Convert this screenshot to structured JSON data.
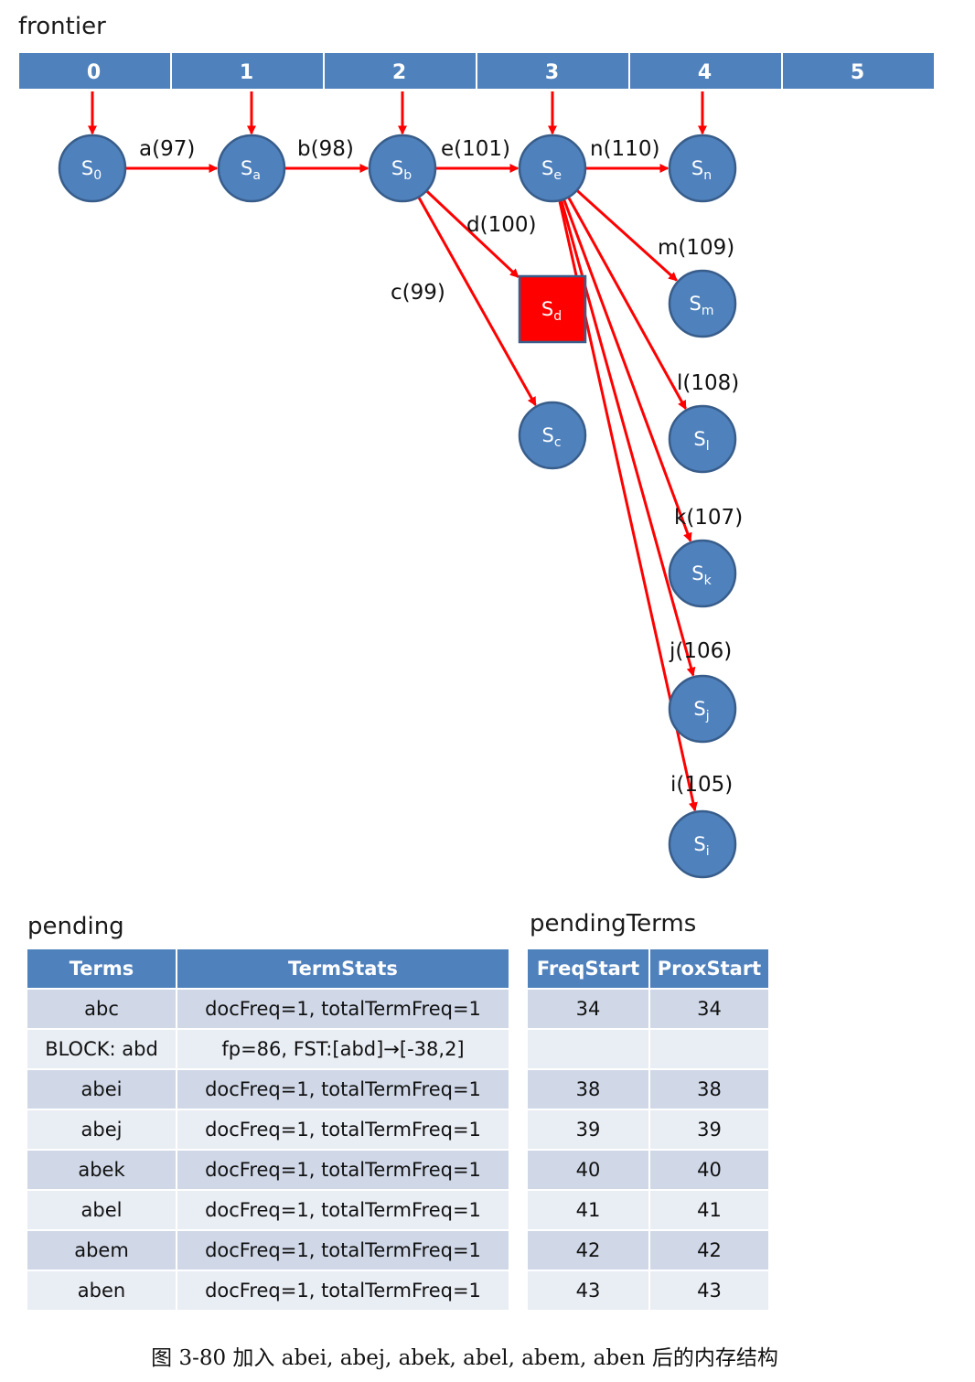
{
  "frontier": {
    "title": "frontier",
    "cells": [
      "0",
      "1",
      "2",
      "3",
      "4",
      "5"
    ]
  },
  "nodes": [
    {
      "id": "s0",
      "base": "S",
      "sub": "0",
      "shape": "circle"
    },
    {
      "id": "sa",
      "base": "S",
      "sub": "a",
      "shape": "circle"
    },
    {
      "id": "sb",
      "base": "S",
      "sub": "b",
      "shape": "circle"
    },
    {
      "id": "se",
      "base": "S",
      "sub": "e",
      "shape": "circle"
    },
    {
      "id": "sn",
      "base": "S",
      "sub": "n",
      "shape": "circle"
    },
    {
      "id": "sd",
      "base": "S",
      "sub": "d",
      "shape": "square"
    },
    {
      "id": "sc",
      "base": "S",
      "sub": "c",
      "shape": "circle"
    },
    {
      "id": "sm",
      "base": "S",
      "sub": "m",
      "shape": "circle"
    },
    {
      "id": "sl",
      "base": "S",
      "sub": "l",
      "shape": "circle"
    },
    {
      "id": "sk",
      "base": "S",
      "sub": "k",
      "shape": "circle"
    },
    {
      "id": "sj",
      "base": "S",
      "sub": "j",
      "shape": "circle"
    },
    {
      "id": "si",
      "base": "S",
      "sub": "i",
      "shape": "circle"
    }
  ],
  "edges": [
    {
      "from": "s0",
      "to": "sa",
      "label": "a(97)"
    },
    {
      "from": "sa",
      "to": "sb",
      "label": "b(98)"
    },
    {
      "from": "sb",
      "to": "se",
      "label": "e(101)"
    },
    {
      "from": "se",
      "to": "sn",
      "label": "n(110)"
    },
    {
      "from": "sb",
      "to": "sd",
      "label": "d(100)"
    },
    {
      "from": "sb",
      "to": "sc",
      "label": "c(99)"
    },
    {
      "from": "se",
      "to": "sm",
      "label": "m(109)"
    },
    {
      "from": "se",
      "to": "sl",
      "label": "l(108)"
    },
    {
      "from": "se",
      "to": "sk",
      "label": "k(107)"
    },
    {
      "from": "se",
      "to": "sj",
      "label": "j(106)"
    },
    {
      "from": "se",
      "to": "si",
      "label": "i(105)"
    }
  ],
  "frontier_links": [
    {
      "cell": "0",
      "node": "s0"
    },
    {
      "cell": "1",
      "node": "sa"
    },
    {
      "cell": "2",
      "node": "sb"
    },
    {
      "cell": "3",
      "node": "se"
    },
    {
      "cell": "4",
      "node": "sn"
    }
  ],
  "pending": {
    "title": "pending",
    "headers": [
      "Terms",
      "TermStats"
    ],
    "rows": [
      [
        "abc",
        "docFreq=1, totalTermFreq=1"
      ],
      [
        "BLOCK: abd",
        "fp=86, FST:[abd]→[-38,2]"
      ],
      [
        "abei",
        "docFreq=1, totalTermFreq=1"
      ],
      [
        "abej",
        "docFreq=1, totalTermFreq=1"
      ],
      [
        "abek",
        "docFreq=1, totalTermFreq=1"
      ],
      [
        "abel",
        "docFreq=1, totalTermFreq=1"
      ],
      [
        "abem",
        "docFreq=1, totalTermFreq=1"
      ],
      [
        "aben",
        "docFreq=1, totalTermFreq=1"
      ]
    ]
  },
  "pendingTerms": {
    "title": "pendingTerms",
    "headers": [
      "FreqStart",
      "ProxStart"
    ],
    "rows": [
      [
        "34",
        "34"
      ],
      [
        "",
        ""
      ],
      [
        "38",
        "38"
      ],
      [
        "39",
        "39"
      ],
      [
        "40",
        "40"
      ],
      [
        "41",
        "41"
      ],
      [
        "42",
        "42"
      ],
      [
        "43",
        "43"
      ]
    ]
  },
  "caption": "图 3-80 加入 abei, abej, abek, abel, abem, aben 后的内存结构",
  "colors": {
    "node_fill": "#4f81bd",
    "node_stroke": "#385d8a",
    "highlight_fill": "#ff0000",
    "edge": "#ff0000",
    "header_fill": "#4f81bd",
    "row_odd": "#d0d8e8",
    "row_even": "#e9edf4"
  }
}
